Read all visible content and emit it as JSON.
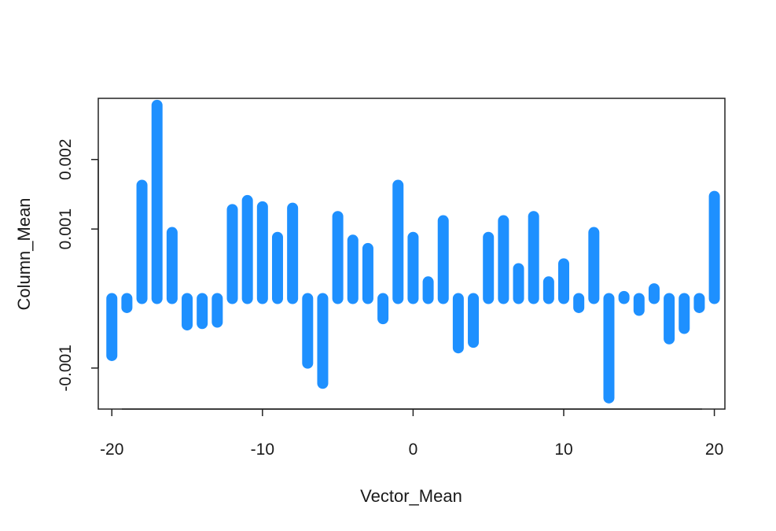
{
  "chart_data": {
    "type": "bar",
    "title": "",
    "xlabel": "Vector_Mean",
    "ylabel": "Column_Mean",
    "x_ticks": [
      "-20",
      "-10",
      "0",
      "10",
      "20"
    ],
    "y_ticks": [
      "-0.001",
      "0.001",
      "0.002"
    ],
    "xlim": [
      -20.9,
      20.7
    ],
    "ylim": [
      -0.00159,
      0.00288
    ],
    "grid": false,
    "bar_color": "#1E90FF",
    "x": [
      -20,
      -19,
      -18,
      -17,
      -16,
      -15,
      -14,
      -13,
      -12,
      -11,
      -10,
      -9,
      -8,
      -7,
      -6,
      -5,
      -4,
      -3,
      -2,
      -1,
      0,
      1,
      2,
      3,
      4,
      5,
      6,
      7,
      8,
      9,
      10,
      11,
      12,
      13,
      14,
      15,
      16,
      17,
      18,
      19,
      20
    ],
    "values": [
      -0.00082,
      -0.00013,
      0.00163,
      0.00278,
      0.00095,
      -0.00038,
      -0.00036,
      -0.00034,
      0.00128,
      0.00141,
      0.00132,
      0.00088,
      0.0013,
      -0.00093,
      -0.00122,
      0.00118,
      0.00084,
      0.00072,
      -0.00029,
      0.00163,
      0.00088,
      0.00024,
      0.00112,
      -0.00071,
      -0.00063,
      0.00088,
      0.00112,
      0.00043,
      0.00118,
      0.00024,
      0.0005,
      -0.00013,
      0.00095,
      -0.00143,
      3e-05,
      -0.00017,
      0.00014,
      -0.00058,
      -0.00043,
      -0.00013,
      0.00147
    ]
  }
}
